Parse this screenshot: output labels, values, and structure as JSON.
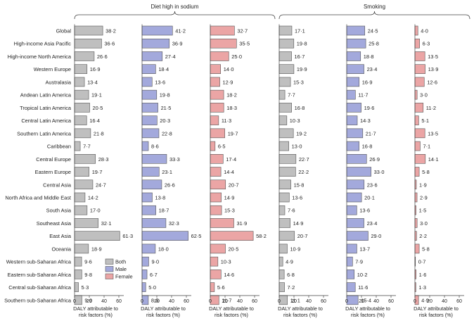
{
  "chart_data": {
    "type": "bar",
    "orientation": "horizontal",
    "value_format": "decimal-middle-dot",
    "colors": {
      "Both": "#bfbfbf",
      "Male": "#a3a9dc",
      "Female": "#eba5a5",
      "stroke": "#555555"
    },
    "legend": {
      "placement": "bottom-left",
      "entries": [
        "Both",
        "Male",
        "Female"
      ]
    },
    "categories": [
      "Global",
      "High-income Asia Pacific",
      "High-income North America",
      "Western Europe",
      "Australasia",
      "Andean Latin America",
      "Tropical Latin America",
      "Central Latin America",
      "Southern Latin America",
      "Caribbean",
      "Central Europe",
      "Eastern Europe",
      "Central Asia",
      "North Africa and Middle East",
      "South Asia",
      "Southeast Asia",
      "East Asia",
      "Oceania",
      "Western sub-Saharan Africa",
      "Eastern sub-Saharan Africa",
      "Central sub-Saharan Africa",
      "Southern sub-Saharan Africa"
    ],
    "groups": [
      {
        "title": "Diet high in sodium",
        "panels": [
          {
            "series": "Both",
            "xlabel": "DALY attributable to risk factors (%)",
            "xlim": [
              0,
              60
            ],
            "ticks": [
              0,
              20,
              40,
              60
            ],
            "values": [
              38.2,
              36.6,
              26.6,
              16.9,
              13.4,
              19.1,
              20.5,
              16.4,
              21.8,
              7.7,
              28.3,
              19.7,
              24.7,
              14.2,
              17.0,
              32.1,
              61.3,
              18.9,
              9.6,
              9.8,
              5.3,
              9.9
            ]
          },
          {
            "series": "Male",
            "xlabel": "DALY attributable to risk factors (%)",
            "xlim": [
              0,
              60
            ],
            "ticks": [
              0,
              20,
              40,
              60
            ],
            "values": [
              41.2,
              36.9,
              27.4,
              18.4,
              13.6,
              19.8,
              21.5,
              20.3,
              22.8,
              8.6,
              33.3,
              23.1,
              26.6,
              13.8,
              18.7,
              32.3,
              62.5,
              18.0,
              9.0,
              6.7,
              5.0,
              8.5
            ]
          },
          {
            "series": "Female",
            "xlabel": "DALY attributable to risk factors (%)",
            "xlim": [
              0,
              60
            ],
            "ticks": [
              0,
              20,
              40,
              60
            ],
            "values": [
              32.7,
              35.5,
              25.0,
              14.0,
              12.9,
              18.2,
              18.3,
              11.3,
              19.7,
              6.5,
              17.4,
              14.4,
              20.7,
              14.9,
              15.3,
              31.9,
              58.2,
              20.5,
              10.3,
              14.6,
              5.6,
              11.7
            ]
          }
        ]
      },
      {
        "title": "Smoking",
        "panels": [
          {
            "series": "Both",
            "xlabel": "DALY attributable to risk factors (%)",
            "xlim": [
              0,
              60
            ],
            "ticks": [
              0,
              20,
              40,
              60
            ],
            "values": [
              17.1,
              19.8,
              16.7,
              19.9,
              15.3,
              7.7,
              16.8,
              10.3,
              19.2,
              13.0,
              22.7,
              22.2,
              15.8,
              13.6,
              7.6,
              14.9,
              20.7,
              10.9,
              4.9,
              6.8,
              7.2,
              11.1
            ]
          },
          {
            "series": "Male",
            "xlabel": "DALY attributable to risk factors (%)",
            "xlim": [
              0,
              60
            ],
            "ticks": [
              0,
              20,
              40,
              60
            ],
            "values": [
              24.5,
              25.8,
              18.8,
              23.4,
              16.9,
              11.7,
              19.6,
              14.3,
              21.7,
              16.8,
              26.9,
              33.0,
              23.6,
              20.1,
              13.6,
              23.4,
              29.0,
              13.7,
              7.9,
              10.2,
              11.6,
              15.4
            ]
          },
          {
            "series": "Female",
            "xlabel": "DALY attributable to risk factors (%)",
            "xlim": [
              0,
              60
            ],
            "ticks": [
              0,
              20,
              40,
              60
            ],
            "values": [
              4.0,
              6.3,
              13.5,
              13.9,
              12.6,
              3.0,
              11.2,
              5.1,
              13.5,
              7.1,
              14.1,
              5.8,
              1.9,
              2.9,
              1.5,
              3.0,
              2.2,
              5.8,
              0.7,
              1.6,
              1.3,
              4.9
            ]
          }
        ]
      }
    ]
  }
}
